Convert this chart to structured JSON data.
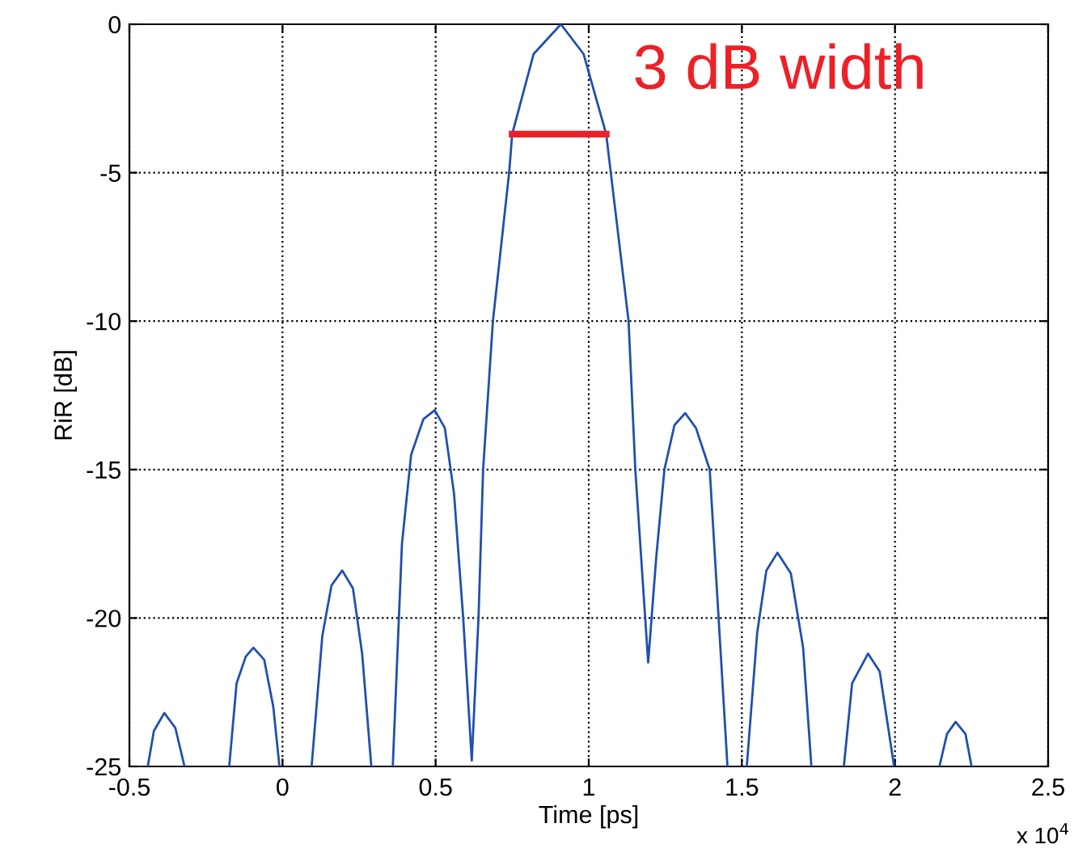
{
  "chart_data": {
    "type": "line",
    "xlabel": "Time [ps]",
    "ylabel": "RiR [dB]",
    "xlim": [
      -0.5,
      2.5
    ],
    "ylim": [
      -25,
      0
    ],
    "xticks": [
      -0.5,
      0,
      0.5,
      1,
      1.5,
      2,
      2.5
    ],
    "yticks": [
      -25,
      -20,
      -15,
      -10,
      -5,
      0
    ],
    "grid": true,
    "line_style": "solid",
    "series": [
      {
        "color": "#1f4fb0",
        "x": [
          -0.44,
          -0.42,
          -0.386,
          -0.35,
          -0.32,
          -0.3,
          -0.174,
          -0.15,
          -0.12,
          -0.095,
          -0.06,
          -0.03,
          -0.01,
          0.05,
          0.095,
          0.13,
          0.16,
          0.195,
          0.23,
          0.26,
          0.29,
          0.32,
          0.36,
          0.39,
          0.42,
          0.46,
          0.497,
          0.53,
          0.56,
          0.59,
          0.618,
          0.64,
          0.655,
          0.687,
          0.74,
          0.75,
          0.82,
          0.909,
          0.983,
          1.057,
          1.072,
          1.13,
          1.152,
          1.194,
          1.22,
          1.247,
          1.28,
          1.315,
          1.35,
          1.395,
          1.453,
          1.48,
          1.516,
          1.55,
          1.58,
          1.616,
          1.66,
          1.7,
          1.727,
          1.78,
          1.833,
          1.86,
          1.912,
          1.95,
          1.997,
          2.07,
          2.145,
          2.17,
          2.198,
          2.23,
          2.25
        ],
        "values": [
          -25,
          -23.8,
          -23.2,
          -23.7,
          -25,
          null,
          -25,
          -22.2,
          -21.3,
          -21.0,
          -21.4,
          -23.0,
          -25,
          null,
          -25,
          -20.6,
          -18.9,
          -18.4,
          -19.0,
          -21.2,
          -25,
          null,
          -25,
          -17.5,
          -14.5,
          -13.3,
          -13.0,
          -13.6,
          -15.8,
          -20.0,
          -24.8,
          -20.0,
          -15,
          -10,
          -5,
          -3.7,
          -1,
          0,
          -1,
          -3.7,
          -5,
          -10,
          -15,
          -21.5,
          -18.0,
          -15,
          -13.5,
          -13.1,
          -13.6,
          -15,
          -25,
          null,
          -25,
          -20.5,
          -18.4,
          -17.8,
          -18.5,
          -21.0,
          -25,
          null,
          -25,
          -22.2,
          -21.2,
          -21.8,
          -25,
          null,
          -25,
          -23.9,
          -23.5,
          -23.9,
          -25
        ]
      },
      {
        "color": "#ee2027",
        "x": [
          0.75,
          1.057
        ],
        "values": [
          -3.7,
          -3.7
        ]
      }
    ],
    "annotations": [
      "3 dB width",
      "x 10$^{4}$"
    ]
  }
}
